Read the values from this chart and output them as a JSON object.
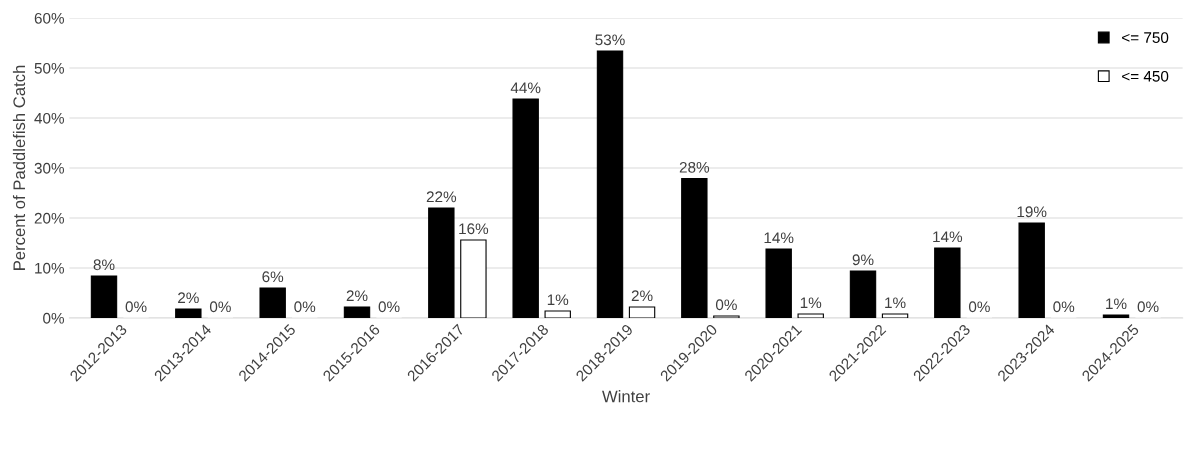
{
  "chart_data": {
    "type": "bar",
    "xlabel": "Winter",
    "ylabel": "Percent of Paddlefish Catch",
    "categories": [
      "2012-2013",
      "2013-2014",
      "2014-2015",
      "2015-2016",
      "2016-2017",
      "2017-2018",
      "2018-2019",
      "2019-2020",
      "2020-2021",
      "2021-2022",
      "2022-2023",
      "2023-2024",
      "2024-2025"
    ],
    "series": [
      {
        "name": "<= 750",
        "color": "#000000",
        "values": [
          8.4,
          1.8,
          6.0,
          2.2,
          22.0,
          43.8,
          53.4,
          27.9,
          13.8,
          9.4,
          14.0,
          19.0,
          0.6
        ],
        "value_labels": [
          "8%",
          "2%",
          "6%",
          "2%",
          "22%",
          "44%",
          "53%",
          "28%",
          "14%",
          "9%",
          "14%",
          "19%",
          "1%"
        ]
      },
      {
        "name": "<= 450",
        "color": "#ffffff",
        "values": [
          0,
          0,
          0,
          0,
          15.6,
          1.4,
          2.2,
          0.4,
          0.8,
          0.8,
          0,
          0,
          0
        ],
        "value_labels": [
          "0%",
          "0%",
          "0%",
          "0%",
          "16%",
          "1%",
          "2%",
          "0%",
          "1%",
          "1%",
          "0%",
          "0%",
          "0%"
        ]
      }
    ],
    "ylim": [
      0,
      60
    ],
    "yticks": [
      {
        "value": 0,
        "label": "0%"
      },
      {
        "value": 10,
        "label": "10%"
      },
      {
        "value": 20,
        "label": "20%"
      },
      {
        "value": 30,
        "label": "30%"
      },
      {
        "value": 40,
        "label": "40%"
      },
      {
        "value": 50,
        "label": "50%"
      },
      {
        "value": 60,
        "label": "60%"
      }
    ],
    "grid": "y",
    "legend": "top right"
  }
}
